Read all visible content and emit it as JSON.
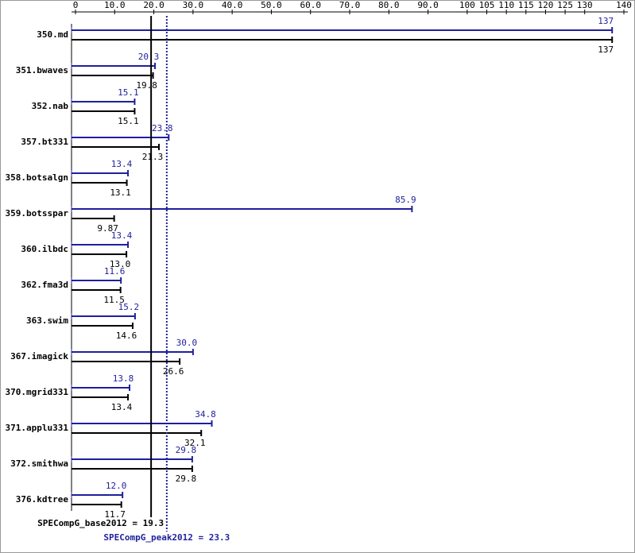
{
  "chart_data": {
    "type": "bar",
    "orientation": "horizontal",
    "categories": [
      "350.md",
      "351.bwaves",
      "352.nab",
      "357.bt331",
      "358.botsalgn",
      "359.botsspar",
      "360.ilbdc",
      "362.fma3d",
      "363.swim",
      "367.imagick",
      "370.mgrid331",
      "371.applu331",
      "372.smithwa",
      "376.kdtree"
    ],
    "series": [
      {
        "name": "peak",
        "color": "#1f1f9c",
        "values": [
          137,
          20.3,
          15.1,
          23.8,
          13.4,
          85.9,
          13.4,
          11.6,
          15.2,
          30.0,
          13.8,
          34.8,
          29.8,
          12.0
        ],
        "value_labels": [
          "137",
          "20.3",
          "15.1",
          "23.8",
          "13.4",
          "85.9",
          "13.4",
          "11.6",
          "15.2",
          "30.0",
          "13.8",
          "34.8",
          "29.8",
          "12.0"
        ]
      },
      {
        "name": "base",
        "color": "#000000",
        "values": [
          137,
          19.8,
          15.1,
          21.3,
          13.1,
          9.87,
          13.0,
          11.5,
          14.6,
          26.6,
          13.4,
          32.1,
          29.8,
          11.7
        ],
        "value_labels": [
          "137",
          "19.8",
          "15.1",
          "21.3",
          "13.1",
          "9.87",
          "13.0",
          "11.5",
          "14.6",
          "26.6",
          "13.4",
          "32.1",
          "29.8",
          "11.7"
        ]
      }
    ],
    "xlim": [
      0,
      140
    ],
    "xticks": [
      0,
      {
        "value": 10,
        "label": "10.0"
      },
      {
        "value": 20,
        "label": "20.0"
      },
      {
        "value": 30,
        "label": "30.0"
      },
      {
        "value": 40,
        "label": "40.0"
      },
      {
        "value": 50,
        "label": "50.0"
      },
      {
        "value": 60,
        "label": "60.0"
      },
      {
        "value": 70,
        "label": "70.0"
      },
      {
        "value": 80,
        "label": "80.0"
      },
      {
        "value": 90,
        "label": "90.0"
      },
      100,
      105,
      110,
      115,
      120,
      125,
      130,
      140
    ],
    "reference_lines": [
      {
        "label": "SPECompG_base2012 = 19.3",
        "value": 19.3,
        "color": "#000000",
        "style": "solid"
      },
      {
        "label": "SPECompG_peak2012 = 23.3",
        "value": 23.3,
        "color": "#1f1f9c",
        "style": "dotted"
      }
    ]
  }
}
